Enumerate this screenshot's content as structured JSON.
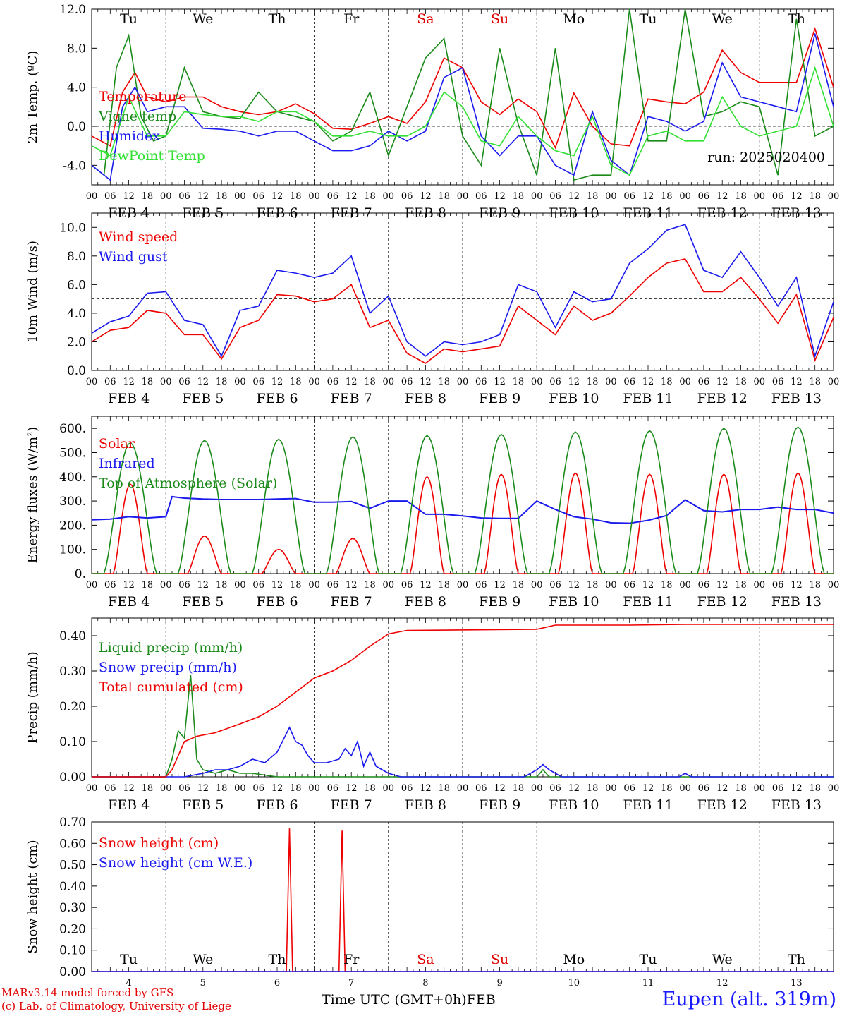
{
  "run_label": "run: 2025020400",
  "days": [
    "FEB  4",
    "FEB  5",
    "FEB  6",
    "FEB  7",
    "FEB  8",
    "FEB  9",
    "FEB 10",
    "FEB 11",
    "FEB 12",
    "FEB 13"
  ],
  "day_numbers": [
    "4",
    "5",
    "6",
    "7",
    "8",
    "9",
    "10",
    "11",
    "12",
    "13"
  ],
  "weekdays": [
    "Tu",
    "We",
    "Th",
    "Fr",
    "Sa",
    "Su",
    "Mo",
    "Tu",
    "We",
    "Th"
  ],
  "weekend_color": "#e00000",
  "hour_ticks": [
    "00",
    "06",
    "12",
    "18"
  ],
  "footer": {
    "line1": "MARv3.14 model forced by GFS",
    "line2": "(c) Lab. of Climatology, University of Liege",
    "xlabel": "Time UTC (GMT+0h)",
    "month": "FEB",
    "station": "Eupen (alt. 319m)"
  },
  "colors": {
    "red": "#ee0000",
    "blue": "#1a1aee",
    "green": "#1a8a1a",
    "lime": "#33e033"
  },
  "chart_data": [
    {
      "id": "temp",
      "type": "line",
      "ylabel": "2m Temp. (ºC)",
      "ylim": [
        -6,
        12
      ],
      "yticks": [
        12,
        8,
        4,
        0,
        -4
      ],
      "ytick_labels": [
        "12.0",
        "8.0",
        "4.0",
        "0.0",
        "-4.0"
      ],
      "ref_line": 0,
      "x_unit": "hours since FEB 4 00 UTC",
      "xlim": [
        0,
        240
      ],
      "series": [
        {
          "name": "Temperature",
          "color": "#ee0000",
          "x": [
            0,
            6,
            10,
            14,
            18,
            24,
            30,
            36,
            42,
            48,
            54,
            60,
            66,
            72,
            78,
            84,
            90,
            96,
            102,
            108,
            114,
            120,
            126,
            132,
            138,
            144,
            150,
            156,
            162,
            168,
            174,
            180,
            186,
            192,
            198,
            204,
            210,
            216,
            222,
            228,
            234,
            240
          ],
          "y": [
            -1,
            -2,
            3.5,
            5.5,
            3,
            2.5,
            3,
            3,
            2,
            1.5,
            1.2,
            1.5,
            2.3,
            1.3,
            -0.2,
            -0.3,
            0.3,
            1.0,
            0.3,
            2.5,
            7,
            6,
            2.5,
            1.2,
            2.8,
            1.5,
            -2.2,
            3.4,
            0,
            -1.8,
            -2.0,
            2.8,
            2.5,
            2.3,
            3.5,
            7.8,
            5.5,
            4.5,
            4.5,
            4.5,
            10,
            4
          ]
        },
        {
          "name": "Vigne temp",
          "color": "#1a8a1a",
          "x": [
            0,
            4,
            8,
            12,
            16,
            20,
            24,
            30,
            36,
            42,
            48,
            54,
            60,
            66,
            72,
            78,
            84,
            90,
            96,
            102,
            108,
            114,
            120,
            126,
            132,
            138,
            144,
            150,
            156,
            162,
            168,
            174,
            180,
            186,
            192,
            198,
            204,
            210,
            216,
            222,
            228,
            234,
            240
          ],
          "y": [
            -4,
            -5,
            6,
            9.3,
            1,
            -1.5,
            -1,
            6,
            1.5,
            1,
            0.8,
            3.5,
            1.5,
            1,
            0.5,
            -1.5,
            -0.5,
            3.5,
            -3,
            2,
            7,
            9,
            -1,
            -4,
            8,
            0.2,
            -5,
            8,
            -5.5,
            -5,
            -5,
            12,
            -1.5,
            -1.5,
            12,
            1,
            1.5,
            2.5,
            2,
            -5,
            11,
            -1,
            0
          ]
        },
        {
          "name": "Humidex",
          "color": "#1a1aee",
          "x": [
            0,
            6,
            10,
            14,
            18,
            24,
            30,
            36,
            42,
            48,
            54,
            60,
            66,
            72,
            78,
            84,
            90,
            96,
            102,
            108,
            114,
            120,
            126,
            132,
            138,
            144,
            150,
            156,
            162,
            168,
            174,
            180,
            186,
            192,
            198,
            204,
            210,
            216,
            222,
            228,
            234,
            240
          ],
          "y": [
            -4,
            -5.5,
            2,
            4,
            1.5,
            2,
            2,
            -0.2,
            -0.3,
            -0.5,
            -1,
            -0.5,
            -0.5,
            -1.5,
            -2.5,
            -2.5,
            -2,
            -0.5,
            -1.5,
            -0.5,
            5,
            6,
            -1,
            -3,
            -1,
            -1,
            -4,
            -5,
            1.5,
            -3.5,
            -5,
            1,
            0.5,
            -0.5,
            0.5,
            6.5,
            3,
            2.5,
            2,
            1.5,
            9.5,
            2
          ]
        },
        {
          "name": "DewPoint Temp",
          "color": "#33e033",
          "x": [
            0,
            6,
            12,
            18,
            24,
            30,
            36,
            42,
            48,
            54,
            60,
            66,
            72,
            78,
            84,
            90,
            96,
            102,
            108,
            114,
            120,
            126,
            132,
            138,
            144,
            150,
            156,
            162,
            168,
            174,
            180,
            186,
            192,
            198,
            204,
            210,
            216,
            222,
            228,
            234,
            240
          ],
          "y": [
            -2,
            -3,
            3,
            -1,
            -1,
            1.5,
            1.2,
            1,
            1,
            0.5,
            1.5,
            1.5,
            0.5,
            -1,
            -1,
            -0.5,
            -1,
            -1,
            0,
            3.5,
            2,
            -1.5,
            -2,
            1,
            -1,
            -2.5,
            -3,
            1,
            -4,
            -5,
            -1,
            -0.5,
            -1.5,
            -1.5,
            3,
            0,
            -1,
            -0.5,
            0,
            6,
            0
          ]
        }
      ]
    },
    {
      "id": "wind",
      "type": "line",
      "ylabel": "10m Wind (m/s)",
      "ylim": [
        0,
        11
      ],
      "yticks": [
        10,
        8,
        6,
        4,
        2,
        0
      ],
      "ytick_labels": [
        "10.0",
        "8.0",
        "6.0",
        "4.0",
        "2.0",
        "0.0"
      ],
      "ref_line": 5,
      "xlim": [
        0,
        240
      ],
      "series": [
        {
          "name": "Wind speed",
          "color": "#ee0000",
          "x": [
            0,
            6,
            12,
            18,
            24,
            30,
            36,
            42,
            48,
            54,
            60,
            66,
            72,
            78,
            84,
            90,
            96,
            102,
            108,
            114,
            120,
            126,
            132,
            138,
            144,
            150,
            156,
            162,
            168,
            174,
            180,
            186,
            192,
            198,
            204,
            210,
            216,
            222,
            228,
            234,
            240
          ],
          "y": [
            2,
            2.8,
            3,
            4.2,
            4,
            2.5,
            2.5,
            0.8,
            3,
            3.5,
            5.3,
            5.2,
            4.8,
            5,
            6,
            3,
            3.5,
            1.2,
            0.5,
            1.5,
            1.3,
            1.5,
            1.7,
            4.5,
            3.5,
            2.5,
            4.5,
            3.5,
            4,
            5.2,
            6.5,
            7.5,
            7.8,
            5.5,
            5.5,
            6.5,
            5,
            3.3,
            5.3,
            0.7,
            3.7
          ]
        },
        {
          "name": "Wind gust",
          "color": "#1a1aee",
          "x": [
            0,
            6,
            12,
            18,
            24,
            30,
            36,
            42,
            48,
            54,
            60,
            66,
            72,
            78,
            84,
            90,
            96,
            102,
            108,
            114,
            120,
            126,
            132,
            138,
            144,
            150,
            156,
            162,
            168,
            174,
            180,
            186,
            192,
            198,
            204,
            210,
            216,
            222,
            228,
            234,
            240
          ],
          "y": [
            2.6,
            3.4,
            3.8,
            5.4,
            5.5,
            3.5,
            3.2,
            1.0,
            4.2,
            4.5,
            7,
            6.8,
            6.5,
            6.8,
            8,
            4,
            5.2,
            2.0,
            1.0,
            2,
            1.8,
            2.0,
            2.5,
            6,
            5.5,
            3,
            5.5,
            4.8,
            5,
            7.5,
            8.5,
            9.8,
            10.2,
            7,
            6.5,
            8.3,
            6.5,
            4.5,
            6.5,
            1.0,
            4.8
          ]
        }
      ]
    },
    {
      "id": "energy",
      "type": "line",
      "ylabel": "Energy fluxes (W/m²)",
      "ylim": [
        0,
        650
      ],
      "yticks": [
        600,
        500,
        400,
        300,
        200,
        100,
        0
      ],
      "ytick_labels": [
        "600.",
        "500.",
        "400.",
        "300.",
        "200.",
        "100.",
        "0."
      ],
      "xlim": [
        0,
        240
      ],
      "series": [
        {
          "name": "Solar",
          "color": "#ee0000",
          "peaks": [
            370,
            155,
            100,
            145,
            400,
            410,
            415,
            410,
            410,
            415
          ]
        },
        {
          "name": "Infrared",
          "color": "#1a1aee",
          "x": [
            0,
            6,
            12,
            18,
            24,
            26,
            30,
            36,
            42,
            48,
            54,
            60,
            66,
            72,
            78,
            84,
            90,
            96,
            102,
            108,
            114,
            120,
            126,
            132,
            138,
            144,
            150,
            156,
            162,
            168,
            174,
            180,
            186,
            192,
            198,
            204,
            210,
            216,
            222,
            228,
            234,
            240
          ],
          "y": [
            222,
            225,
            235,
            230,
            235,
            318,
            312,
            308,
            306,
            306,
            306,
            308,
            310,
            295,
            295,
            298,
            270,
            300,
            300,
            245,
            245,
            238,
            230,
            228,
            228,
            300,
            265,
            235,
            225,
            210,
            208,
            220,
            240,
            305,
            260,
            255,
            265,
            265,
            275,
            265,
            265,
            250
          ]
        },
        {
          "name": "Top of Atmosphere (Solar)",
          "color": "#1a8a1a",
          "peaks": [
            540,
            550,
            555,
            565,
            570,
            575,
            585,
            590,
            600,
            605
          ]
        }
      ]
    },
    {
      "id": "precip",
      "type": "line",
      "ylabel": "Precip (mm/h)",
      "ylim": [
        0,
        0.45
      ],
      "yticks": [
        0.4,
        0.3,
        0.2,
        0.1,
        0.0
      ],
      "ytick_labels": [
        "0.40",
        "0.30",
        "0.20",
        "0.10",
        "0.00"
      ],
      "xlim": [
        0,
        240
      ],
      "series": [
        {
          "name": "Liquid precip (mm/h)",
          "color": "#1a8a1a",
          "x": [
            0,
            24,
            26,
            28,
            30,
            32,
            34,
            36,
            40,
            44,
            48,
            52,
            56,
            60,
            64,
            68,
            72,
            144,
            146,
            148,
            240
          ],
          "y": [
            0,
            0,
            0.05,
            0.13,
            0.11,
            0.29,
            0.05,
            0.02,
            0.01,
            0.02,
            0.01,
            0.01,
            0.005,
            0,
            0,
            0,
            0,
            0,
            0.02,
            0,
            0
          ]
        },
        {
          "name": "Snow precip (mm/h)",
          "color": "#1a1aee",
          "x": [
            0,
            30,
            36,
            40,
            44,
            48,
            52,
            56,
            60,
            64,
            66,
            68,
            70,
            72,
            76,
            80,
            82,
            84,
            86,
            88,
            90,
            92,
            94,
            96,
            100,
            140,
            144,
            146,
            148,
            152,
            156,
            190,
            192,
            194,
            240
          ],
          "y": [
            0,
            0,
            0.01,
            0.02,
            0.02,
            0.03,
            0.05,
            0.04,
            0.07,
            0.14,
            0.1,
            0.09,
            0.06,
            0.04,
            0.04,
            0.05,
            0.08,
            0.06,
            0.1,
            0.03,
            0.07,
            0.03,
            0.02,
            0.01,
            0,
            0,
            0.02,
            0.035,
            0.02,
            0,
            0,
            0,
            0.01,
            0,
            0
          ]
        },
        {
          "name": "Total cumulated (cm)",
          "color": "#ee0000",
          "x": [
            0,
            24,
            26,
            30,
            34,
            40,
            48,
            54,
            60,
            66,
            72,
            78,
            84,
            90,
            96,
            102,
            144,
            150,
            174,
            192,
            240
          ],
          "y": [
            0,
            0,
            0.02,
            0.1,
            0.115,
            0.125,
            0.15,
            0.17,
            0.2,
            0.24,
            0.28,
            0.3,
            0.33,
            0.37,
            0.405,
            0.415,
            0.418,
            0.43,
            0.43,
            0.432,
            0.432
          ]
        }
      ]
    },
    {
      "id": "snow",
      "type": "line",
      "ylabel": "Snow height (cm)",
      "ylim": [
        0,
        0.7
      ],
      "yticks": [
        0.7,
        0.6,
        0.5,
        0.4,
        0.3,
        0.2,
        0.1,
        0.0
      ],
      "ytick_labels": [
        "0.70",
        "0.60",
        "0.50",
        "0.40",
        "0.30",
        "0.20",
        "0.10",
        "0.00"
      ],
      "xlim": [
        0,
        240
      ],
      "series": [
        {
          "name": "Snow height (cm)",
          "color": "#ee0000",
          "x": [
            0,
            63,
            64,
            65,
            80,
            81,
            82,
            240
          ],
          "y": [
            0,
            0,
            0.67,
            0,
            0,
            0.66,
            0,
            0
          ]
        },
        {
          "name": "Snow height (cm W.E.)",
          "color": "#1a1aee",
          "x": [
            0,
            240
          ],
          "y": [
            0,
            0
          ]
        }
      ]
    }
  ]
}
